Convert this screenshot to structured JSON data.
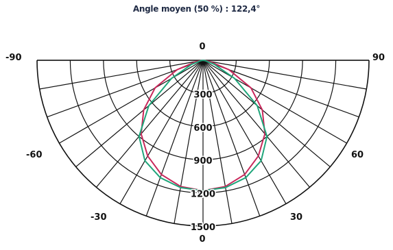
{
  "chart_data": {
    "type": "polar",
    "title": "Angle moyen (50 %) : 122,4°",
    "angle_labels": {
      "left_top": "-90",
      "right_top": "90",
      "left_mid": "-60",
      "right_mid": "60",
      "left_low": "-30",
      "right_low": "30",
      "top_center": "0",
      "bottom_center": "0"
    },
    "angle_range": [
      -90,
      90
    ],
    "angle_grid_step": 10,
    "radial_ticks": [
      "300",
      "600",
      "900",
      "1200",
      "1500"
    ],
    "radial_max": 1500,
    "radial_grid_step": 300,
    "grid": true,
    "series": [
      {
        "color": "#c8275a",
        "points": [
          {
            "angle": 0,
            "value": 1180
          },
          {
            "angle": 10,
            "value": 1160
          },
          {
            "angle": 20,
            "value": 1100
          },
          {
            "angle": 30,
            "value": 1000
          },
          {
            "angle": 40,
            "value": 870
          },
          {
            "angle": 50,
            "value": 700
          },
          {
            "angle": 60,
            "value": 500
          },
          {
            "angle": 70,
            "value": 250
          },
          {
            "angle": 80,
            "value": 60
          },
          {
            "angle": 90,
            "value": 0
          }
        ]
      },
      {
        "color": "#1ea57a",
        "points": [
          {
            "angle": 0,
            "value": 1180
          },
          {
            "angle": 10,
            "value": 1170
          },
          {
            "angle": 20,
            "value": 1130
          },
          {
            "angle": 30,
            "value": 1050
          },
          {
            "angle": 40,
            "value": 900
          },
          {
            "angle": 50,
            "value": 640
          },
          {
            "angle": 60,
            "value": 330
          },
          {
            "angle": 70,
            "value": 110
          },
          {
            "angle": 80,
            "value": 20
          },
          {
            "angle": 90,
            "value": 0
          }
        ]
      }
    ]
  }
}
